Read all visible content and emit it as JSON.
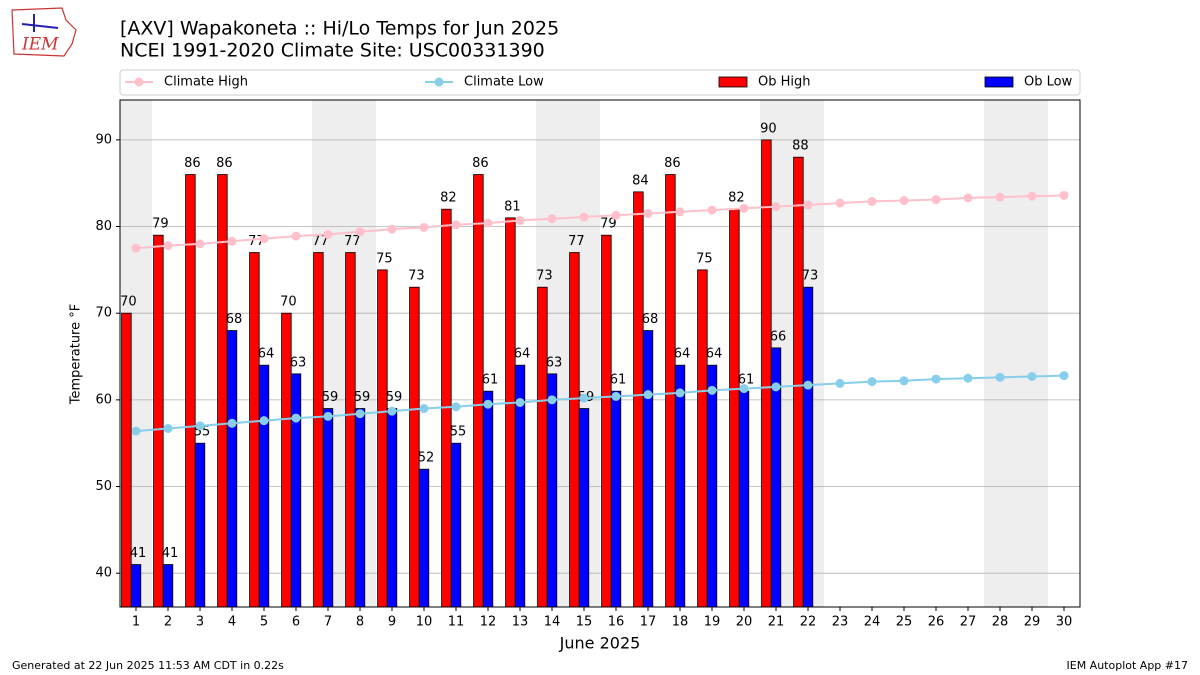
{
  "chart_data": {
    "type": "bar",
    "title": "[AXV] Wapakoneta :: Hi/Lo Temps for Jun 2025",
    "subtitle": "NCEI 1991-2020 Climate Site: USC00331390",
    "x_label": "June 2025",
    "y_label": "Temperature °F",
    "logo_text": "IEM",
    "footer_left": "Generated at 22 Jun 2025 11:53 AM CDT in 0.22s",
    "footer_right": "IEM Autoplot App #17",
    "x": [
      1,
      2,
      3,
      4,
      5,
      6,
      7,
      8,
      9,
      10,
      11,
      12,
      13,
      14,
      15,
      16,
      17,
      18,
      19,
      20,
      21,
      22,
      23,
      24,
      25,
      26,
      27,
      28,
      29,
      30
    ],
    "xlim": [
      0.5,
      30.5
    ],
    "ylim": [
      36.1,
      94.6
    ],
    "yticks": [
      40,
      50,
      60,
      70,
      80,
      90
    ],
    "grid": true,
    "shaded_days": [
      1,
      7,
      8,
      14,
      15,
      21,
      22,
      28,
      29
    ],
    "series": [
      {
        "name": "Climate High",
        "color": "#ffc0cb",
        "kind": "line",
        "values": [
          77.5,
          77.8,
          78.0,
          78.3,
          78.6,
          78.9,
          79.1,
          79.4,
          79.7,
          79.9,
          80.2,
          80.4,
          80.7,
          80.9,
          81.1,
          81.3,
          81.5,
          81.7,
          81.9,
          82.1,
          82.3,
          82.5,
          82.7,
          82.9,
          83.0,
          83.1,
          83.3,
          83.4,
          83.5,
          83.6
        ]
      },
      {
        "name": "Climate Low",
        "color": "#87ceeb",
        "kind": "line",
        "values": [
          56.4,
          56.7,
          57.0,
          57.3,
          57.6,
          57.9,
          58.1,
          58.4,
          58.7,
          59.0,
          59.2,
          59.5,
          59.7,
          60.0,
          60.2,
          60.4,
          60.6,
          60.8,
          61.1,
          61.3,
          61.5,
          61.7,
          61.9,
          62.1,
          62.2,
          62.4,
          62.5,
          62.6,
          62.7,
          62.8
        ]
      },
      {
        "name": "Ob High",
        "color": "#ff0000",
        "kind": "bar",
        "values": [
          70,
          79,
          86,
          86,
          77,
          70,
          77,
          77,
          75,
          73,
          82,
          86,
          81,
          73,
          77,
          79,
          84,
          86,
          75,
          82,
          90,
          88,
          null,
          null,
          null,
          null,
          null,
          null,
          null,
          null
        ]
      },
      {
        "name": "Ob Low",
        "color": "#0000ff",
        "kind": "bar",
        "values": [
          41,
          41,
          55,
          68,
          64,
          63,
          59,
          59,
          59,
          52,
          55,
          61,
          64,
          63,
          59,
          61,
          68,
          64,
          64,
          61,
          66,
          73,
          null,
          null,
          null,
          null,
          null,
          null,
          null,
          null
        ]
      }
    ]
  }
}
